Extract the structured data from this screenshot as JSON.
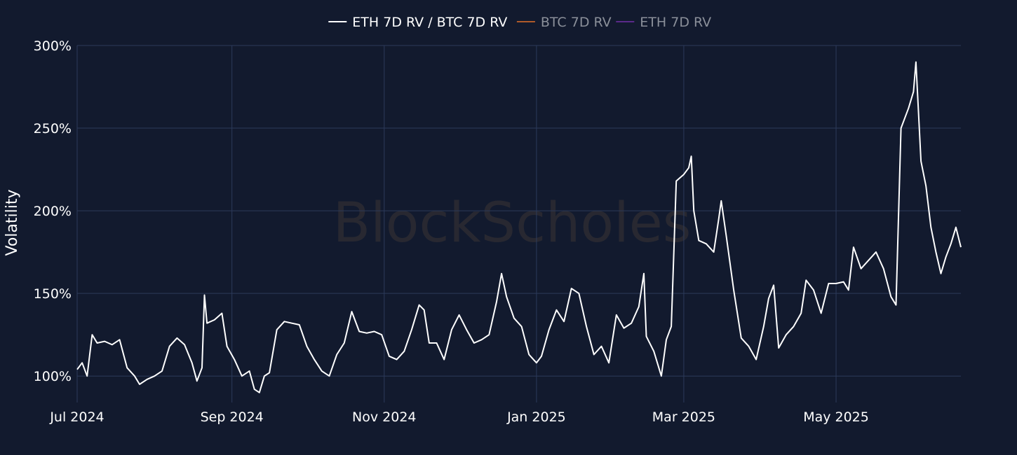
{
  "watermark": "BlockScholes",
  "chart_data": {
    "type": "line",
    "title": "",
    "xlabel": "",
    "ylabel": "Volatility",
    "ylim": [
      84,
      300
    ],
    "y_ticks": [
      {
        "value": 100,
        "label": "100%"
      },
      {
        "value": 150,
        "label": "150%"
      },
      {
        "value": 200,
        "label": "200%"
      },
      {
        "value": 250,
        "label": "250%"
      },
      {
        "value": 300,
        "label": "300%"
      }
    ],
    "x_range": [
      "2024-07-01",
      "2025-06-20"
    ],
    "x_ticks": [
      {
        "date": "2024-07-01",
        "label": "Jul 2024"
      },
      {
        "date": "2024-09-01",
        "label": "Sep 2024"
      },
      {
        "date": "2024-11-01",
        "label": "Nov 2024"
      },
      {
        "date": "2025-01-01",
        "label": "Jan 2025"
      },
      {
        "date": "2025-03-01",
        "label": "Mar 2025"
      },
      {
        "date": "2025-05-01",
        "label": "May 2025"
      }
    ],
    "grid": true,
    "legend_position": "top-center",
    "series": [
      {
        "name": "ETH 7D RV / BTC 7D RV",
        "color": "#ffffff",
        "visible": true,
        "points": [
          [
            "2024-07-01",
            104
          ],
          [
            "2024-07-03",
            108
          ],
          [
            "2024-07-05",
            100
          ],
          [
            "2024-07-07",
            125
          ],
          [
            "2024-07-09",
            120
          ],
          [
            "2024-07-12",
            121
          ],
          [
            "2024-07-15",
            119
          ],
          [
            "2024-07-18",
            122
          ],
          [
            "2024-07-21",
            105
          ],
          [
            "2024-07-24",
            100
          ],
          [
            "2024-07-26",
            95
          ],
          [
            "2024-07-29",
            98
          ],
          [
            "2024-08-01",
            100
          ],
          [
            "2024-08-04",
            103
          ],
          [
            "2024-08-07",
            118
          ],
          [
            "2024-08-10",
            123
          ],
          [
            "2024-08-13",
            119
          ],
          [
            "2024-08-16",
            108
          ],
          [
            "2024-08-18",
            97
          ],
          [
            "2024-08-20",
            105
          ],
          [
            "2024-08-21",
            149
          ],
          [
            "2024-08-22",
            132
          ],
          [
            "2024-08-25",
            134
          ],
          [
            "2024-08-28",
            138
          ],
          [
            "2024-08-30",
            118
          ],
          [
            "2024-09-02",
            110
          ],
          [
            "2024-09-05",
            100
          ],
          [
            "2024-09-08",
            103
          ],
          [
            "2024-09-10",
            92
          ],
          [
            "2024-09-12",
            90
          ],
          [
            "2024-09-14",
            100
          ],
          [
            "2024-09-16",
            102
          ],
          [
            "2024-09-19",
            128
          ],
          [
            "2024-09-22",
            133
          ],
          [
            "2024-09-25",
            132
          ],
          [
            "2024-09-28",
            131
          ],
          [
            "2024-10-01",
            118
          ],
          [
            "2024-10-04",
            110
          ],
          [
            "2024-10-07",
            103
          ],
          [
            "2024-10-10",
            100
          ],
          [
            "2024-10-13",
            113
          ],
          [
            "2024-10-16",
            120
          ],
          [
            "2024-10-19",
            139
          ],
          [
            "2024-10-22",
            127
          ],
          [
            "2024-10-25",
            126
          ],
          [
            "2024-10-28",
            127
          ],
          [
            "2024-10-31",
            125
          ],
          [
            "2024-11-03",
            112
          ],
          [
            "2024-11-06",
            110
          ],
          [
            "2024-11-09",
            115
          ],
          [
            "2024-11-12",
            128
          ],
          [
            "2024-11-15",
            143
          ],
          [
            "2024-11-17",
            140
          ],
          [
            "2024-11-19",
            120
          ],
          [
            "2024-11-22",
            120
          ],
          [
            "2024-11-25",
            110
          ],
          [
            "2024-11-28",
            128
          ],
          [
            "2024-12-01",
            137
          ],
          [
            "2024-12-04",
            128
          ],
          [
            "2024-12-07",
            120
          ],
          [
            "2024-12-10",
            122
          ],
          [
            "2024-12-13",
            125
          ],
          [
            "2024-12-16",
            145
          ],
          [
            "2024-12-18",
            162
          ],
          [
            "2024-12-20",
            148
          ],
          [
            "2024-12-23",
            135
          ],
          [
            "2024-12-26",
            130
          ],
          [
            "2024-12-29",
            113
          ],
          [
            "2025-01-01",
            108
          ],
          [
            "2025-01-03",
            112
          ],
          [
            "2025-01-06",
            128
          ],
          [
            "2025-01-09",
            140
          ],
          [
            "2025-01-12",
            133
          ],
          [
            "2025-01-15",
            153
          ],
          [
            "2025-01-18",
            150
          ],
          [
            "2025-01-21",
            130
          ],
          [
            "2025-01-24",
            113
          ],
          [
            "2025-01-27",
            118
          ],
          [
            "2025-01-30",
            108
          ],
          [
            "2025-02-02",
            137
          ],
          [
            "2025-02-05",
            129
          ],
          [
            "2025-02-08",
            132
          ],
          [
            "2025-02-11",
            142
          ],
          [
            "2025-02-13",
            162
          ],
          [
            "2025-02-14",
            124
          ],
          [
            "2025-02-17",
            115
          ],
          [
            "2025-02-20",
            100
          ],
          [
            "2025-02-22",
            122
          ],
          [
            "2025-02-24",
            130
          ],
          [
            "2025-02-26",
            218
          ],
          [
            "2025-03-01",
            222
          ],
          [
            "2025-03-03",
            226
          ],
          [
            "2025-03-04",
            233
          ],
          [
            "2025-03-05",
            200
          ],
          [
            "2025-03-07",
            182
          ],
          [
            "2025-03-10",
            180
          ],
          [
            "2025-03-13",
            175
          ],
          [
            "2025-03-15",
            195
          ],
          [
            "2025-03-16",
            206
          ],
          [
            "2025-03-18",
            185
          ],
          [
            "2025-03-21",
            152
          ],
          [
            "2025-03-24",
            123
          ],
          [
            "2025-03-27",
            118
          ],
          [
            "2025-03-30",
            110
          ],
          [
            "2025-04-02",
            130
          ],
          [
            "2025-04-04",
            147
          ],
          [
            "2025-04-06",
            155
          ],
          [
            "2025-04-08",
            117
          ],
          [
            "2025-04-11",
            125
          ],
          [
            "2025-04-14",
            130
          ],
          [
            "2025-04-17",
            138
          ],
          [
            "2025-04-19",
            158
          ],
          [
            "2025-04-22",
            152
          ],
          [
            "2025-04-25",
            138
          ],
          [
            "2025-04-28",
            156
          ],
          [
            "2025-05-01",
            156
          ],
          [
            "2025-05-04",
            157
          ],
          [
            "2025-05-06",
            152
          ],
          [
            "2025-05-08",
            178
          ],
          [
            "2025-05-11",
            165
          ],
          [
            "2025-05-14",
            170
          ],
          [
            "2025-05-17",
            175
          ],
          [
            "2025-05-20",
            165
          ],
          [
            "2025-05-23",
            148
          ],
          [
            "2025-05-25",
            143
          ],
          [
            "2025-05-27",
            250
          ],
          [
            "2025-05-30",
            262
          ],
          [
            "2025-06-01",
            272
          ],
          [
            "2025-06-02",
            290
          ],
          [
            "2025-06-04",
            230
          ],
          [
            "2025-06-06",
            215
          ],
          [
            "2025-06-08",
            190
          ],
          [
            "2025-06-10",
            175
          ],
          [
            "2025-06-12",
            162
          ],
          [
            "2025-06-14",
            172
          ],
          [
            "2025-06-16",
            180
          ],
          [
            "2025-06-18",
            190
          ],
          [
            "2025-06-20",
            178
          ]
        ]
      },
      {
        "name": "BTC 7D RV",
        "color": "#b05a2a",
        "visible": false
      },
      {
        "name": "ETH 7D RV",
        "color": "#5a2a8a",
        "visible": false
      }
    ]
  }
}
